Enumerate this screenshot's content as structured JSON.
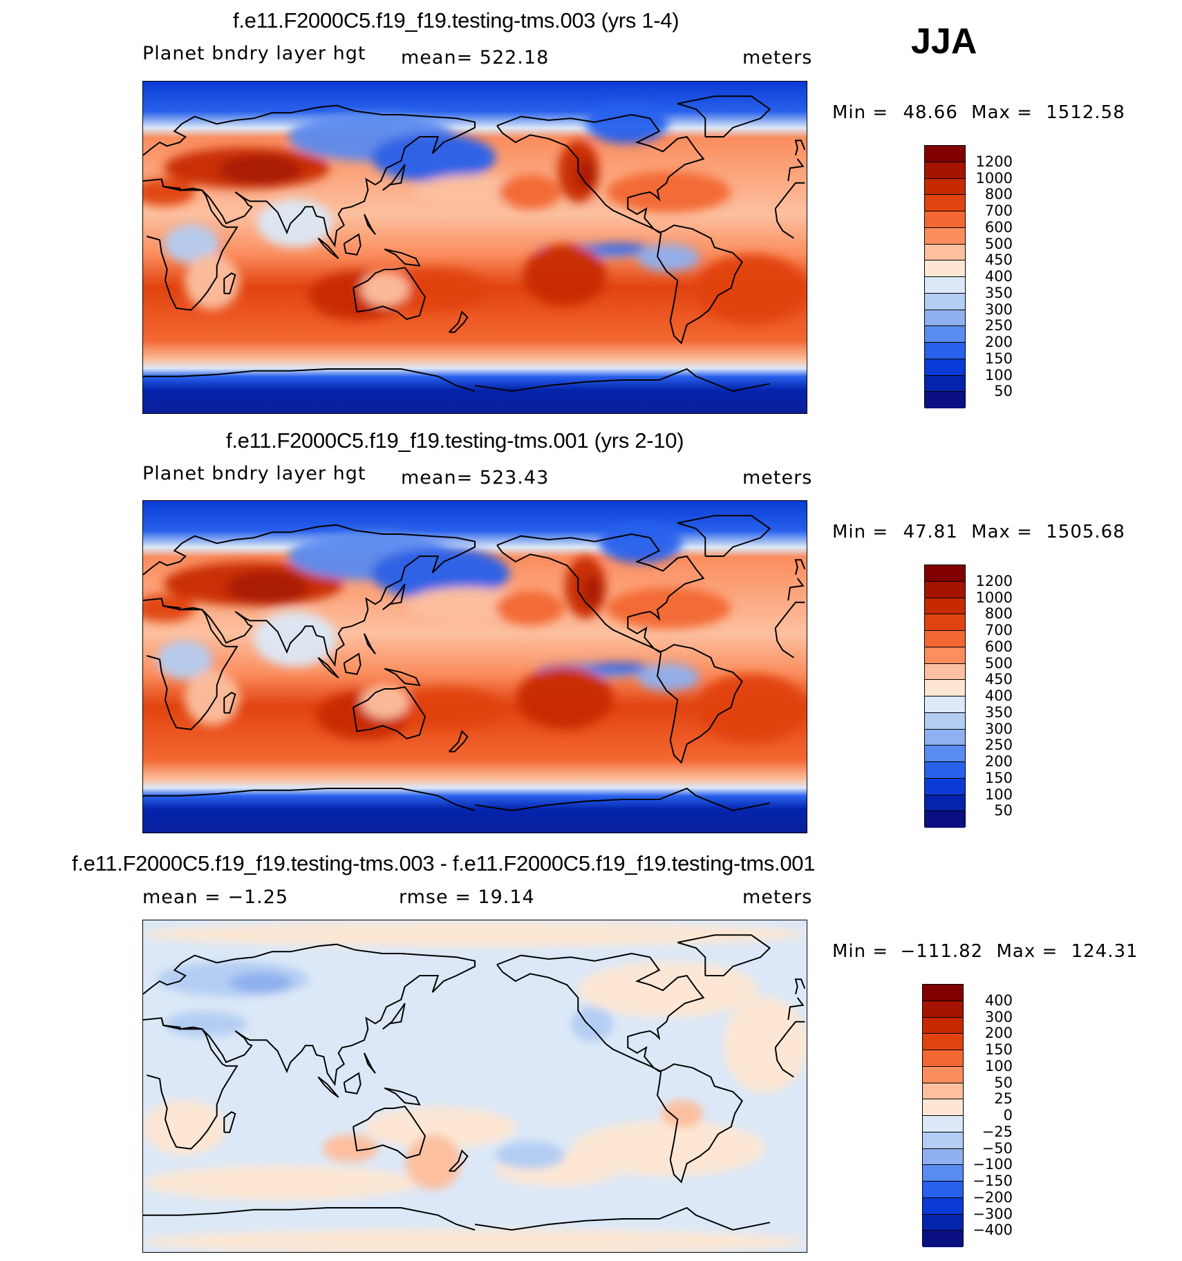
{
  "season": "JJA",
  "units": "meters",
  "coastline": [
    [
      [
        -168,
        66
      ],
      [
        -155,
        71
      ],
      [
        -140,
        69
      ],
      [
        -128,
        70
      ],
      [
        -115,
        68
      ],
      [
        -95,
        72
      ],
      [
        -85,
        70
      ],
      [
        -80,
        63
      ],
      [
        -92,
        57
      ],
      [
        -85,
        55
      ],
      [
        -78,
        52
      ],
      [
        -70,
        59
      ],
      [
        -65,
        60
      ],
      [
        -60,
        53
      ],
      [
        -56,
        48
      ],
      [
        -66,
        45
      ],
      [
        -70,
        42
      ],
      [
        -75,
        38
      ],
      [
        -76,
        35
      ],
      [
        -81,
        31
      ],
      [
        -80,
        26
      ],
      [
        -82,
        28
      ],
      [
        -85,
        30
      ],
      [
        -90,
        29
      ],
      [
        -97,
        27
      ],
      [
        -97,
        21
      ],
      [
        -92,
        18
      ],
      [
        -87,
        21
      ],
      [
        -88,
        16
      ],
      [
        -83,
        10
      ],
      [
        -80,
        8
      ],
      [
        -77,
        9
      ],
      [
        -72,
        12
      ],
      [
        -62,
        10
      ],
      [
        -52,
        5
      ],
      [
        -50,
        0
      ],
      [
        -40,
        -3
      ],
      [
        -35,
        -8
      ],
      [
        -39,
        -15
      ],
      [
        -41,
        -22
      ],
      [
        -48,
        -26
      ],
      [
        -53,
        -34
      ],
      [
        -58,
        -38
      ],
      [
        -65,
        -42
      ],
      [
        -68,
        -52
      ],
      [
        -72,
        -48
      ],
      [
        -74,
        -40
      ],
      [
        -72,
        -30
      ],
      [
        -70,
        -18
      ],
      [
        -76,
        -13
      ],
      [
        -81,
        -5
      ],
      [
        -80,
        1
      ],
      [
        -79,
        8
      ],
      [
        -85,
        11
      ],
      [
        -92,
        14
      ],
      [
        -105,
        20
      ],
      [
        -109,
        23
      ],
      [
        -115,
        30
      ],
      [
        -117,
        32
      ],
      [
        -120,
        35
      ],
      [
        -124,
        41
      ],
      [
        -124,
        48
      ],
      [
        -130,
        55
      ],
      [
        -140,
        59
      ],
      [
        -150,
        61
      ],
      [
        -158,
        57
      ],
      [
        -165,
        62
      ],
      [
        -168,
        66
      ]
    ],
    [
      [
        -10,
        36
      ],
      [
        -9,
        43
      ],
      [
        -2,
        44
      ],
      [
        -5,
        48
      ],
      [
        0,
        50
      ],
      [
        5,
        54
      ],
      [
        9,
        57
      ],
      [
        13,
        55
      ],
      [
        20,
        57
      ],
      [
        23,
        60
      ],
      [
        17,
        63
      ],
      [
        21,
        67
      ],
      [
        28,
        71
      ],
      [
        40,
        67
      ],
      [
        50,
        69
      ],
      [
        60,
        70
      ],
      [
        70,
        73
      ],
      [
        80,
        73
      ],
      [
        95,
        76
      ],
      [
        105,
        77
      ],
      [
        115,
        74
      ],
      [
        130,
        72
      ],
      [
        140,
        72
      ],
      [
        155,
        71
      ],
      [
        170,
        70
      ],
      [
        180,
        68
      ],
      [
        180,
        65
      ],
      [
        170,
        60
      ],
      [
        163,
        57
      ],
      [
        157,
        51
      ],
      [
        160,
        60
      ],
      [
        150,
        60
      ],
      [
        142,
        54
      ],
      [
        140,
        47
      ],
      [
        132,
        43
      ],
      [
        129,
        36
      ],
      [
        126,
        34
      ],
      [
        121,
        37
      ],
      [
        122,
        31
      ],
      [
        120,
        25
      ],
      [
        113,
        22
      ],
      [
        108,
        21
      ],
      [
        106,
        18
      ],
      [
        109,
        12
      ],
      [
        105,
        9
      ],
      [
        104,
        1
      ],
      [
        100,
        7
      ],
      [
        98,
        16
      ],
      [
        94,
        17
      ],
      [
        92,
        22
      ],
      [
        88,
        22
      ],
      [
        86,
        19
      ],
      [
        80,
        13
      ],
      [
        78,
        8
      ],
      [
        73,
        19
      ],
      [
        67,
        25
      ],
      [
        58,
        25
      ],
      [
        56,
        26
      ],
      [
        50,
        30
      ],
      [
        55,
        26
      ],
      [
        57,
        23
      ],
      [
        59,
        22
      ],
      [
        55,
        17
      ],
      [
        45,
        13
      ],
      [
        43,
        17
      ],
      [
        36,
        27
      ],
      [
        33,
        30
      ],
      [
        32,
        31
      ],
      [
        27,
        32
      ],
      [
        20,
        31
      ],
      [
        20,
        32
      ],
      [
        11,
        33
      ],
      [
        10,
        37
      ],
      [
        0,
        36
      ],
      [
        -10,
        36
      ]
    ],
    [
      [
        -17,
        21
      ],
      [
        -16,
        14
      ],
      [
        -13,
        9
      ],
      [
        -7,
        5
      ],
      [
        2,
        6
      ],
      [
        9,
        4
      ],
      [
        10,
        -3
      ],
      [
        13,
        -12
      ],
      [
        12,
        -18
      ],
      [
        15,
        -27
      ],
      [
        18,
        -33
      ],
      [
        26,
        -34
      ],
      [
        31,
        -29
      ],
      [
        35,
        -24
      ],
      [
        40,
        -16
      ],
      [
        40,
        -10
      ],
      [
        43,
        -2
      ],
      [
        51,
        11
      ],
      [
        45,
        11
      ],
      [
        43,
        12
      ],
      [
        37,
        20
      ],
      [
        34,
        28
      ],
      [
        32,
        31
      ],
      [
        20,
        31
      ],
      [
        11,
        33
      ],
      [
        10,
        37
      ],
      [
        -1,
        35
      ],
      [
        -6,
        35
      ],
      [
        -10,
        30
      ],
      [
        -17,
        21
      ]
    ],
    [
      [
        114,
        -22
      ],
      [
        116,
        -35
      ],
      [
        123,
        -34
      ],
      [
        130,
        -32
      ],
      [
        138,
        -35
      ],
      [
        143,
        -39
      ],
      [
        150,
        -37
      ],
      [
        153,
        -27
      ],
      [
        145,
        -15
      ],
      [
        142,
        -11
      ],
      [
        136,
        -12
      ],
      [
        131,
        -12
      ],
      [
        126,
        -14
      ],
      [
        122,
        -18
      ],
      [
        114,
        -22
      ]
    ],
    [
      [
        -180,
        -75
      ],
      [
        -160,
        -78
      ],
      [
        -140,
        -75
      ],
      [
        -120,
        -73
      ],
      [
        -100,
        -72
      ],
      [
        -80,
        -72
      ],
      [
        -65,
        -66
      ],
      [
        -60,
        -70
      ],
      [
        -40,
        -78
      ],
      [
        -20,
        -74
      ],
      [
        0,
        -70
      ],
      [
        20,
        -70
      ],
      [
        40,
        -69
      ],
      [
        60,
        -67
      ],
      [
        80,
        -67
      ],
      [
        100,
        -66
      ],
      [
        120,
        -66
      ],
      [
        140,
        -66
      ],
      [
        160,
        -70
      ],
      [
        170,
        -75
      ],
      [
        180,
        -78
      ]
    ],
    [
      [
        -55,
        60
      ],
      [
        -45,
        60
      ],
      [
        -40,
        65
      ],
      [
        -25,
        70
      ],
      [
        -20,
        75
      ],
      [
        -30,
        82
      ],
      [
        -50,
        82
      ],
      [
        -70,
        78
      ],
      [
        -60,
        75
      ],
      [
        -55,
        70
      ],
      [
        -55,
        60
      ]
    ],
    [
      [
        -6,
        50
      ],
      [
        -5,
        54
      ],
      [
        -6,
        58
      ],
      [
        -3,
        58
      ],
      [
        -1,
        53
      ],
      [
        1,
        51
      ],
      [
        -6,
        50
      ]
    ],
    [
      [
        44,
        -25
      ],
      [
        44,
        -17
      ],
      [
        48,
        -14
      ],
      [
        50,
        -15
      ],
      [
        47,
        -25
      ],
      [
        44,
        -25
      ]
    ],
    [
      [
        130,
        31
      ],
      [
        134,
        34
      ],
      [
        140,
        35
      ],
      [
        141,
        40
      ],
      [
        142,
        45
      ],
      [
        140,
        42
      ],
      [
        135,
        35
      ],
      [
        130,
        31
      ]
    ],
    [
      [
        95,
        5
      ],
      [
        100,
        1
      ],
      [
        106,
        -6
      ],
      [
        102,
        -3
      ],
      [
        98,
        1
      ],
      [
        95,
        5
      ]
    ],
    [
      [
        109,
        2
      ],
      [
        110,
        -3
      ],
      [
        116,
        -4
      ],
      [
        118,
        1
      ],
      [
        117,
        7
      ],
      [
        109,
        2
      ]
    ],
    [
      [
        131,
        -1
      ],
      [
        140,
        -3
      ],
      [
        148,
        -6
      ],
      [
        150,
        -10
      ],
      [
        142,
        -9
      ],
      [
        137,
        -4
      ],
      [
        131,
        -1
      ]
    ],
    [
      [
        120,
        18
      ],
      [
        122,
        14
      ],
      [
        124,
        10
      ],
      [
        126,
        7
      ],
      [
        122,
        12
      ],
      [
        120,
        18
      ]
    ],
    [
      [
        166,
        -46
      ],
      [
        171,
        -41
      ],
      [
        173,
        -35
      ],
      [
        176,
        -38
      ],
      [
        174,
        -41
      ],
      [
        169,
        -46
      ],
      [
        166,
        -46
      ]
    ]
  ],
  "panels": [
    {
      "title": "f.e11.F2000C5.f19_f19.testing-tms.003 (yrs 1-4)",
      "left_label": "Planet bndry layer hgt",
      "center_label": "mean=  522.18",
      "right_label": "meters",
      "min_label": "Min =",
      "min_value": "48.66",
      "max_label": "Max =",
      "max_value": "1512.58",
      "colorbar": {
        "colors": [
          "#800000",
          "#a61400",
          "#c82a00",
          "#e14310",
          "#f36832",
          "#fb8d5e",
          "#fcc0a0",
          "#fde7d4",
          "#dce8f7",
          "#b4cdf3",
          "#8fb0f0",
          "#5a8bf0",
          "#2861ec",
          "#0a3bd6",
          "#0424ad",
          "#0a0f82"
        ],
        "labels": [
          "1200",
          "1000",
          "800",
          "700",
          "600",
          "500",
          "450",
          "400",
          "350",
          "300",
          "250",
          "200",
          "150",
          "100",
          "50"
        ]
      }
    },
    {
      "title": "f.e11.F2000C5.f19_f19.testing-tms.001 (yrs 2-10)",
      "left_label": "Planet bndry layer hgt",
      "center_label": "mean=  523.43",
      "right_label": "meters",
      "min_label": "Min =",
      "min_value": "47.81",
      "max_label": "Max =",
      "max_value": "1505.68",
      "colorbar": {
        "colors": [
          "#800000",
          "#a61400",
          "#c82a00",
          "#e14310",
          "#f36832",
          "#fb8d5e",
          "#fcc0a0",
          "#fde7d4",
          "#dce8f7",
          "#b4cdf3",
          "#8fb0f0",
          "#5a8bf0",
          "#2861ec",
          "#0a3bd6",
          "#0424ad",
          "#0a0f82"
        ],
        "labels": [
          "1200",
          "1000",
          "800",
          "700",
          "600",
          "500",
          "450",
          "400",
          "350",
          "300",
          "250",
          "200",
          "150",
          "100",
          "50"
        ]
      }
    },
    {
      "title": "f.e11.F2000C5.f19_f19.testing-tms.003 - f.e11.F2000C5.f19_f19.testing-tms.001",
      "left_label": "mean =   −1.25",
      "center_label": "rmse =   19.14",
      "right_label": "meters",
      "min_label": "Min =",
      "min_value": "−111.82",
      "max_label": "Max =",
      "max_value": "124.31",
      "colorbar": {
        "colors": [
          "#800000",
          "#a61400",
          "#c82a00",
          "#e14310",
          "#f36832",
          "#fb8d5e",
          "#fcc0a0",
          "#fde7d4",
          "#dce8f7",
          "#b4cdf3",
          "#8fb0f0",
          "#5a8bf0",
          "#2861ec",
          "#0a3bd6",
          "#0424ad",
          "#0a0f82"
        ],
        "labels": [
          "400",
          "300",
          "200",
          "150",
          "100",
          "50",
          "25",
          "0",
          "−25",
          "−50",
          "−100",
          "−150",
          "−200",
          "−300",
          "−400"
        ]
      }
    }
  ]
}
